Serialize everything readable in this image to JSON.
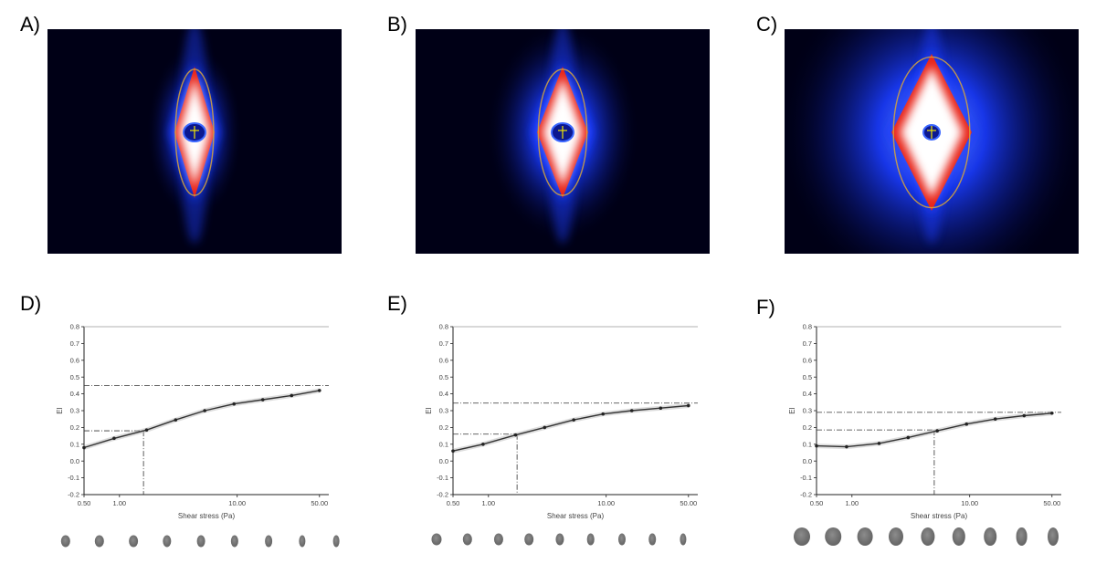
{
  "labels": {
    "A": "A)",
    "B": "B)",
    "C": "C)",
    "D": "D)",
    "E": "E)",
    "F": "F)"
  },
  "colors": {
    "diffraction_background": "#000016",
    "halo": "#1a3cff",
    "intensity_core": "#ffffff",
    "intensity_rim": "#e8251a",
    "ellipse_fit": "#d9a63a",
    "beam_center": "#f2e600",
    "curve": "#333333"
  },
  "diffraction_images": [
    {
      "panel": "A",
      "elongation": "low"
    },
    {
      "panel": "B",
      "elongation": "medium"
    },
    {
      "panel": "C",
      "elongation": "high"
    }
  ],
  "chart_data": [
    {
      "panel": "D",
      "type": "line",
      "xlabel": "Shear stress (Pa)",
      "ylabel": "EI",
      "xscale": "log",
      "xlim": [
        0.5,
        60
      ],
      "ylim": [
        -0.2,
        0.8
      ],
      "xticks": [
        "0.50",
        "1.00",
        "10.00",
        "50.00"
      ],
      "yticks": [
        "0.8",
        "0.7",
        "0.6",
        "0.5",
        "0.4",
        "0.3",
        "0.2",
        "0.1",
        "0.0",
        "-0.1",
        "-0.2"
      ],
      "x": [
        0.5,
        0.9,
        1.7,
        3.0,
        5.3,
        9.4,
        16.5,
        29,
        50
      ],
      "y": [
        0.08,
        0.135,
        0.185,
        0.245,
        0.3,
        0.34,
        0.365,
        0.39,
        0.42
      ],
      "reference_lines": {
        "ei_max": 0.45,
        "half_ei_max": 0.18,
        "ss_half": 1.6
      },
      "grid": false,
      "cells": [
        0.8,
        0.8,
        0.75,
        0.72,
        0.68,
        0.64,
        0.6,
        0.56,
        0.52
      ]
    },
    {
      "panel": "E",
      "type": "line",
      "xlabel": "Shear stress (Pa)",
      "ylabel": "EI",
      "xscale": "log",
      "xlim": [
        0.5,
        60
      ],
      "ylim": [
        -0.2,
        0.8
      ],
      "xticks": [
        "0.50",
        "1.00",
        "10.00",
        "50.00"
      ],
      "yticks": [
        "0.8",
        "0.7",
        "0.6",
        "0.5",
        "0.4",
        "0.3",
        "0.2",
        "0.1",
        "0.0",
        "-0.1",
        "-0.2"
      ],
      "x": [
        0.5,
        0.9,
        1.7,
        3.0,
        5.3,
        9.4,
        16.5,
        29,
        50
      ],
      "y": [
        0.06,
        0.1,
        0.155,
        0.2,
        0.245,
        0.28,
        0.3,
        0.315,
        0.33
      ],
      "reference_lines": {
        "ei_max": 0.345,
        "half_ei_max": 0.16,
        "ss_half": 1.75
      },
      "grid": false,
      "cells": [
        0.85,
        0.8,
        0.78,
        0.74,
        0.7,
        0.66,
        0.62,
        0.58,
        0.55
      ]
    },
    {
      "panel": "F",
      "type": "line",
      "xlabel": "Shear stress (Pa)",
      "ylabel": "EI",
      "xscale": "log",
      "xlim": [
        0.5,
        60
      ],
      "ylim": [
        -0.2,
        0.8
      ],
      "xticks": [
        "0.50",
        "1.00",
        "10.00",
        "50.00"
      ],
      "yticks": [
        "0.8",
        "0.7",
        "0.6",
        "0.5",
        "0.4",
        "0.3",
        "0.2",
        "0.1",
        "0.0",
        "-0.1",
        "-0.2"
      ],
      "x": [
        0.5,
        0.9,
        1.7,
        3.0,
        5.3,
        9.4,
        16.5,
        29,
        50
      ],
      "y": [
        0.09,
        0.085,
        0.105,
        0.14,
        0.18,
        0.22,
        0.25,
        0.27,
        0.285
      ],
      "reference_lines": {
        "ei_max": 0.29,
        "half_ei_max": 0.185,
        "ss_half": 5.0
      },
      "grid": false,
      "cells": [
        0.9,
        0.88,
        0.84,
        0.8,
        0.76,
        0.72,
        0.68,
        0.64,
        0.6
      ]
    }
  ]
}
